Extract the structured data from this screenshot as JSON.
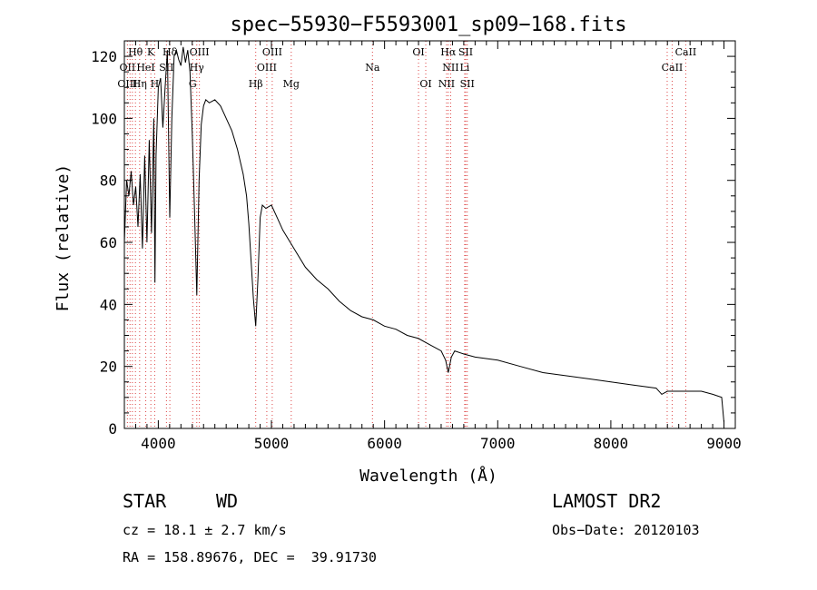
{
  "chart_data": {
    "type": "line",
    "title": "spec−55930−F5593001_sp09−168.fits",
    "xlabel": "Wavelength (Å)",
    "ylabel": "Flux (relative)",
    "xlim": [
      3700,
      9100
    ],
    "ylim": [
      0,
      125
    ],
    "xticks": [
      4000,
      5000,
      6000,
      7000,
      8000,
      9000
    ],
    "yticks": [
      0,
      20,
      40,
      60,
      80,
      100,
      120
    ],
    "grid": false,
    "series": [
      {
        "x": [
          3700,
          3720,
          3740,
          3760,
          3780,
          3800,
          3820,
          3840,
          3860,
          3880,
          3900,
          3920,
          3940,
          3960,
          3970,
          3980,
          4000,
          4020,
          4040,
          4060,
          4080,
          4101,
          4120,
          4140,
          4160,
          4180,
          4200,
          4220,
          4240,
          4260,
          4280,
          4300,
          4320,
          4340,
          4360,
          4380,
          4400,
          4420,
          4450,
          4500,
          4550,
          4600,
          4650,
          4700,
          4750,
          4780,
          4800,
          4820,
          4840,
          4861,
          4880,
          4900,
          4920,
          4950,
          5000,
          5050,
          5100,
          5200,
          5300,
          5400,
          5500,
          5600,
          5700,
          5800,
          5900,
          6000,
          6100,
          6200,
          6300,
          6400,
          6500,
          6540,
          6563,
          6590,
          6620,
          6700,
          6800,
          7000,
          7200,
          7400,
          7600,
          7800,
          8000,
          8200,
          8400,
          8450,
          8500,
          8600,
          8700,
          8800,
          8900,
          8980,
          9000
        ],
        "values": [
          60,
          80,
          75,
          83,
          72,
          78,
          65,
          82,
          58,
          88,
          60,
          93,
          63,
          100,
          47,
          88,
          110,
          113,
          97,
          110,
          122,
          68,
          100,
          120,
          122,
          119,
          117,
          123,
          118,
          122,
          115,
          95,
          70,
          43,
          80,
          98,
          104,
          106,
          105,
          106,
          104,
          100,
          96,
          90,
          82,
          75,
          66,
          54,
          42,
          33,
          48,
          68,
          72,
          71,
          72,
          68,
          64,
          58,
          52,
          48,
          45,
          41,
          38,
          36,
          35,
          33,
          32,
          30,
          29,
          27,
          25,
          22,
          18,
          23,
          25,
          24,
          23,
          22,
          20,
          18,
          17,
          16,
          15,
          14,
          13,
          11,
          12,
          12,
          12,
          12,
          11,
          10,
          2
        ]
      }
    ],
    "lines": [
      {
        "name": "Hθ",
        "x": 3798,
        "row": 1
      },
      {
        "name": "K",
        "x": 3934,
        "row": 1
      },
      {
        "name": "Hδ",
        "x": 4102,
        "row": 1
      },
      {
        "name": "OIII",
        "x": 4363,
        "row": 1
      },
      {
        "name": "OIII",
        "x": 5007,
        "row": 1
      },
      {
        "name": "OI",
        "x": 6300,
        "row": 1
      },
      {
        "name": "Hα",
        "x": 6563,
        "row": 1
      },
      {
        "name": "SII",
        "x": 6717,
        "row": 1
      },
      {
        "name": "CaII",
        "x": 8662,
        "row": 1
      },
      {
        "name": "OII",
        "x": 3727,
        "row": 2
      },
      {
        "name": "HeI",
        "x": 3889,
        "row": 2
      },
      {
        "name": "SII",
        "x": 4072,
        "row": 2
      },
      {
        "name": "Hγ",
        "x": 4340,
        "row": 2
      },
      {
        "name": "OIII",
        "x": 4959,
        "row": 2
      },
      {
        "name": "Na",
        "x": 5893,
        "row": 2
      },
      {
        "name": "NII",
        "x": 6584,
        "row": 2
      },
      {
        "name": "Li",
        "x": 6708,
        "row": 2
      },
      {
        "name": "CaII",
        "x": 8542,
        "row": 2
      },
      {
        "name": "OIII",
        "x": 3727,
        "row": 3
      },
      {
        "name": "Hη",
        "x": 3835,
        "row": 3
      },
      {
        "name": "H",
        "x": 3968,
        "row": 3
      },
      {
        "name": "G",
        "x": 4304,
        "row": 3
      },
      {
        "name": "Hβ",
        "x": 4861,
        "row": 3
      },
      {
        "name": "Mg",
        "x": 5175,
        "row": 3
      },
      {
        "name": "OI",
        "x": 6364,
        "row": 3
      },
      {
        "name": "NII",
        "x": 6548,
        "row": 3
      },
      {
        "name": "SII",
        "x": 6731,
        "row": 3
      }
    ],
    "line_markers_x": [
      3727,
      3750,
      3771,
      3798,
      3835,
      3889,
      3934,
      3968,
      4072,
      4102,
      4304,
      4340,
      4363,
      4861,
      4959,
      5007,
      5175,
      5893,
      6300,
      6364,
      6548,
      6563,
      6584,
      6708,
      6717,
      6731,
      8498,
      8542,
      8662
    ]
  },
  "info": {
    "class_label": "STAR",
    "subclass_label": "WD",
    "survey": "LAMOST DR2",
    "cz": "cz = 18.1 ± 2.7 km/s",
    "obs_date": "Obs−Date: 20120103",
    "coords": "RA = 158.89676, DEC =  39.91730"
  }
}
